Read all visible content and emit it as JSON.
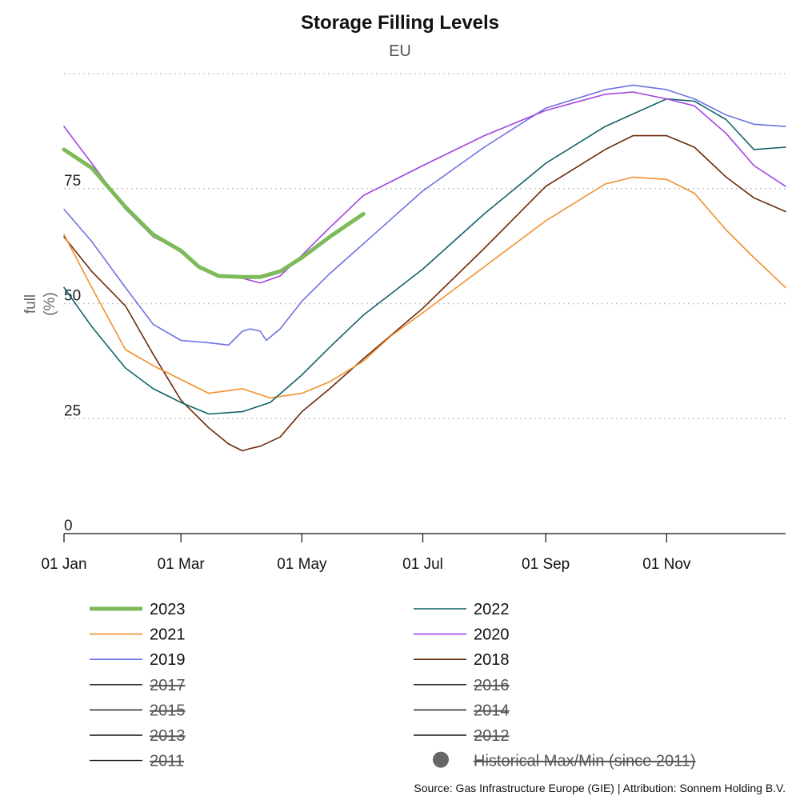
{
  "chart_data": {
    "type": "line",
    "title": "Storage Filling Levels",
    "subtitle": "EU",
    "ylabel_line1": "full",
    "ylabel_line2": "(%)",
    "ylim": [
      0,
      100
    ],
    "yticks": [
      0,
      25,
      50,
      75
    ],
    "x_domain": [
      "01 Jan",
      "31 Dec"
    ],
    "xticks": [
      "01 Jan",
      "01 Mar",
      "01 May",
      "01 Jul",
      "01 Sep",
      "01 Nov"
    ],
    "grid": "horizontal dotted",
    "source": "Source: Gas Infrastructure Europe (GIE) | Attribution: Sonnem Holding B.V.",
    "series": [
      {
        "name": "2023",
        "color": "#7dbb5a",
        "width": 5,
        "visible": true,
        "x": [
          "01 Jan",
          "15 Jan",
          "01 Feb",
          "15 Feb",
          "01 Mar",
          "10 Mar",
          "20 Mar",
          "01 Apr",
          "10 Apr",
          "20 Apr",
          "01 May",
          "15 May",
          "01 Jun"
        ],
        "y": [
          83.5,
          79.5,
          71,
          65,
          61.5,
          58,
          56,
          55.8,
          55.8,
          57,
          60,
          64.5,
          69.5
        ]
      },
      {
        "name": "2022",
        "color": "#13626a",
        "width": 1.6,
        "visible": true,
        "x": [
          "01 Jan",
          "15 Jan",
          "01 Feb",
          "15 Feb",
          "01 Mar",
          "15 Mar",
          "01 Apr",
          "15 Apr",
          "01 May",
          "15 May",
          "01 Jun",
          "01 Jul",
          "01 Aug",
          "01 Sep",
          "01 Oct",
          "01 Nov",
          "15 Nov",
          "01 Dec",
          "15 Dec",
          "31 Dec"
        ],
        "y": [
          53.5,
          45,
          36,
          31.5,
          28.5,
          26,
          26.5,
          28.5,
          34.5,
          40.5,
          47.5,
          57.5,
          69.5,
          80.5,
          88.5,
          94.5,
          94,
          90,
          83.5,
          84
        ]
      },
      {
        "name": "2021",
        "color": "#f0902e",
        "width": 1.6,
        "visible": true,
        "x": [
          "01 Jan",
          "15 Jan",
          "01 Feb",
          "15 Feb",
          "01 Mar",
          "15 Mar",
          "01 Apr",
          "15 Apr",
          "01 May",
          "15 May",
          "01 Jun",
          "15 Jun",
          "01 Jul",
          "01 Aug",
          "01 Sep",
          "01 Oct",
          "15 Oct",
          "01 Nov",
          "15 Nov",
          "01 Dec",
          "15 Dec",
          "31 Dec"
        ],
        "y": [
          65,
          53.5,
          40,
          36.5,
          33.5,
          30.5,
          31.5,
          29.5,
          30.5,
          33,
          37.5,
          43,
          48,
          58,
          68,
          76,
          77.5,
          77,
          74,
          66,
          60,
          53.5
        ]
      },
      {
        "name": "2020",
        "color": "#a343e1",
        "width": 1.6,
        "visible": true,
        "x": [
          "01 Jan",
          "15 Jan",
          "01 Feb",
          "15 Feb",
          "01 Mar",
          "10 Mar",
          "20 Mar",
          "01 Apr",
          "10 Apr",
          "20 Apr",
          "01 May",
          "15 May",
          "01 Jun",
          "01 Jul",
          "01 Aug",
          "01 Sep",
          "01 Oct",
          "15 Oct",
          "01 Nov",
          "15 Nov",
          "01 Dec",
          "15 Dec",
          "31 Dec"
        ],
        "y": [
          88.5,
          80.5,
          70.5,
          64.5,
          61.5,
          58,
          56,
          55.5,
          54.5,
          56,
          60.5,
          66.5,
          73.5,
          80,
          86.5,
          92,
          95.5,
          96,
          94.5,
          93,
          87,
          80,
          75.5
        ]
      },
      {
        "name": "2019",
        "color": "#6d72e1",
        "width": 1.6,
        "visible": true,
        "x": [
          "01 Jan",
          "15 Jan",
          "01 Feb",
          "15 Feb",
          "01 Mar",
          "15 Mar",
          "25 Mar",
          "01 Apr",
          "05 Apr",
          "10 Apr",
          "13 Apr",
          "20 Apr",
          "01 May",
          "15 May",
          "01 Jun",
          "01 Jul",
          "01 Aug",
          "01 Sep",
          "01 Oct",
          "15 Oct",
          "01 Nov",
          "15 Nov",
          "01 Dec",
          "15 Dec",
          "31 Dec"
        ],
        "y": [
          70.5,
          63.5,
          53.5,
          45.5,
          42,
          41.5,
          41,
          44,
          44.5,
          44,
          42,
          44.5,
          50.5,
          56.5,
          63,
          74.5,
          84,
          92.5,
          96.5,
          97.5,
          96.5,
          94.5,
          91,
          89,
          88.5
        ]
      },
      {
        "name": "2018",
        "color": "#6b2a0a",
        "width": 1.6,
        "visible": true,
        "x": [
          "01 Jan",
          "15 Jan",
          "01 Feb",
          "15 Feb",
          "01 Mar",
          "15 Mar",
          "25 Mar",
          "01 Apr",
          "05 Apr",
          "10 Apr",
          "20 Apr",
          "01 May",
          "15 May",
          "01 Jun",
          "01 Jul",
          "01 Aug",
          "01 Sep",
          "01 Oct",
          "15 Oct",
          "01 Nov",
          "15 Nov",
          "01 Dec",
          "15 Dec",
          "31 Dec"
        ],
        "y": [
          64.5,
          57,
          49.5,
          39,
          29,
          23,
          19.5,
          18,
          18.5,
          19,
          21,
          26.5,
          31.5,
          38,
          49,
          62,
          75.5,
          83.5,
          86.5,
          86.5,
          84,
          77.5,
          73,
          70
        ]
      },
      {
        "name": "2017",
        "color": "#111111",
        "width": 1.4,
        "visible": false,
        "x": [],
        "y": []
      },
      {
        "name": "2016",
        "color": "#111111",
        "width": 1.4,
        "visible": false,
        "x": [],
        "y": []
      },
      {
        "name": "2015",
        "color": "#111111",
        "width": 1.4,
        "visible": false,
        "x": [],
        "y": []
      },
      {
        "name": "2014",
        "color": "#111111",
        "width": 1.4,
        "visible": false,
        "x": [],
        "y": []
      },
      {
        "name": "2013",
        "color": "#111111",
        "width": 1.4,
        "visible": false,
        "x": [],
        "y": []
      },
      {
        "name": "2012",
        "color": "#111111",
        "width": 1.4,
        "visible": false,
        "x": [],
        "y": []
      },
      {
        "name": "2011",
        "color": "#111111",
        "width": 1.4,
        "visible": false,
        "x": [],
        "y": []
      }
    ],
    "legend": [
      {
        "label": "2023",
        "color": "#7dbb5a",
        "width": 5,
        "active": true,
        "marker": "line"
      },
      {
        "label": "2022",
        "color": "#13626a",
        "width": 1.6,
        "active": true,
        "marker": "line"
      },
      {
        "label": "2021",
        "color": "#f0902e",
        "width": 1.6,
        "active": true,
        "marker": "line"
      },
      {
        "label": "2020",
        "color": "#a343e1",
        "width": 1.6,
        "active": true,
        "marker": "line"
      },
      {
        "label": "2019",
        "color": "#6d72e1",
        "width": 1.6,
        "active": true,
        "marker": "line"
      },
      {
        "label": "2018",
        "color": "#6b2a0a",
        "width": 1.6,
        "active": true,
        "marker": "line"
      },
      {
        "label": "2017",
        "color": "#111111",
        "width": 1.4,
        "active": false,
        "marker": "line"
      },
      {
        "label": "2016",
        "color": "#111111",
        "width": 1.4,
        "active": false,
        "marker": "line"
      },
      {
        "label": "2015",
        "color": "#111111",
        "width": 1.4,
        "active": false,
        "marker": "line"
      },
      {
        "label": "2014",
        "color": "#111111",
        "width": 1.4,
        "active": false,
        "marker": "line"
      },
      {
        "label": "2013",
        "color": "#111111",
        "width": 1.4,
        "active": false,
        "marker": "line"
      },
      {
        "label": "2012",
        "color": "#111111",
        "width": 1.4,
        "active": false,
        "marker": "line"
      },
      {
        "label": "2011",
        "color": "#111111",
        "width": 1.4,
        "active": false,
        "marker": "line"
      },
      {
        "label": "Historical Max/Min (since 2011)",
        "color": "#666666",
        "width": 0,
        "active": false,
        "marker": "dot"
      }
    ]
  }
}
